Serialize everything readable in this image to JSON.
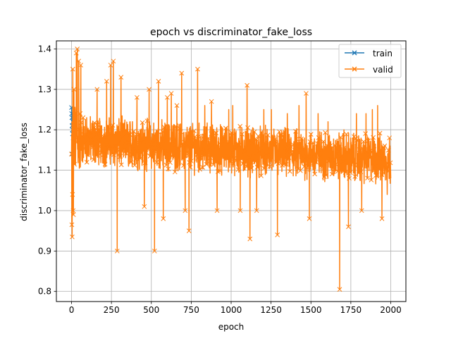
{
  "chart_data": {
    "type": "line",
    "title": "epoch vs discriminator_fake_loss",
    "xlabel": "epoch",
    "ylabel": "discriminator_fake_loss",
    "xlim": [
      -95,
      2095
    ],
    "ylim": [
      0.775,
      1.42
    ],
    "x_ticks": [
      0,
      250,
      500,
      750,
      1000,
      1250,
      1500,
      1750,
      2000
    ],
    "y_ticks": [
      0.8,
      0.9,
      1.0,
      1.1,
      1.2,
      1.3,
      1.4
    ],
    "grid": true,
    "legend_position": "top-right",
    "marker": "x",
    "series": [
      {
        "name": "train",
        "color": "#1f77b4",
        "x_range": [
          0,
          2000
        ],
        "points": [
          [
            0,
            1.255
          ],
          [
            1,
            1.24
          ],
          [
            2,
            1.23
          ],
          [
            3,
            1.21
          ],
          [
            4,
            1.14
          ],
          [
            5,
            1.2
          ],
          [
            6,
            1.19
          ],
          [
            8,
            1.22
          ],
          [
            10,
            1.18
          ]
        ]
      },
      {
        "name": "valid",
        "color": "#ff7f0e",
        "x_range": [
          0,
          2000
        ],
        "notable_points": [
          [
            0,
            1.14
          ],
          [
            2,
            0.965
          ],
          [
            4,
            0.935
          ],
          [
            6,
            1.04
          ],
          [
            8,
            1.35
          ],
          [
            10,
            1.0
          ],
          [
            12,
            0.99
          ],
          [
            15,
            1.3
          ],
          [
            22,
            1.25
          ],
          [
            30,
            1.39
          ],
          [
            36,
            1.4
          ],
          [
            45,
            1.37
          ],
          [
            58,
            1.36
          ],
          [
            72,
            1.23
          ],
          [
            95,
            1.23
          ],
          [
            160,
            1.3
          ],
          [
            220,
            1.32
          ],
          [
            245,
            1.36
          ],
          [
            262,
            1.37
          ],
          [
            286,
            0.9
          ],
          [
            310,
            1.33
          ],
          [
            340,
            1.2
          ],
          [
            382,
            1.22
          ],
          [
            410,
            1.28
          ],
          [
            456,
            1.01
          ],
          [
            486,
            1.3
          ],
          [
            520,
            0.9
          ],
          [
            545,
            1.32
          ],
          [
            575,
            0.98
          ],
          [
            600,
            1.28
          ],
          [
            625,
            1.29
          ],
          [
            660,
            1.26
          ],
          [
            690,
            1.34
          ],
          [
            712,
            1.0
          ],
          [
            736,
            0.95
          ],
          [
            790,
            1.35
          ],
          [
            835,
            1.26
          ],
          [
            877,
            1.27
          ],
          [
            912,
            1.0
          ],
          [
            985,
            1.25
          ],
          [
            1010,
            1.26
          ],
          [
            1057,
            1.0
          ],
          [
            1100,
            1.31
          ],
          [
            1118,
            0.93
          ],
          [
            1160,
            1.0
          ],
          [
            1205,
            1.25
          ],
          [
            1252,
            1.25
          ],
          [
            1290,
            0.94
          ],
          [
            1352,
            1.24
          ],
          [
            1425,
            1.26
          ],
          [
            1470,
            1.29
          ],
          [
            1490,
            0.98
          ],
          [
            1545,
            1.24
          ],
          [
            1607,
            1.22
          ],
          [
            1680,
            0.805
          ],
          [
            1707,
            1.2
          ],
          [
            1735,
            0.96
          ],
          [
            1785,
            1.24
          ],
          [
            1818,
            1.0
          ],
          [
            1845,
            1.24
          ],
          [
            1885,
            1.25
          ],
          [
            1918,
            1.26
          ],
          [
            1945,
            0.98
          ],
          [
            1978,
            1.04
          ],
          [
            1995,
            1.16
          ],
          [
            2000,
            1.08
          ]
        ],
        "typical_range": [
          1.04,
          1.24
        ]
      }
    ]
  }
}
